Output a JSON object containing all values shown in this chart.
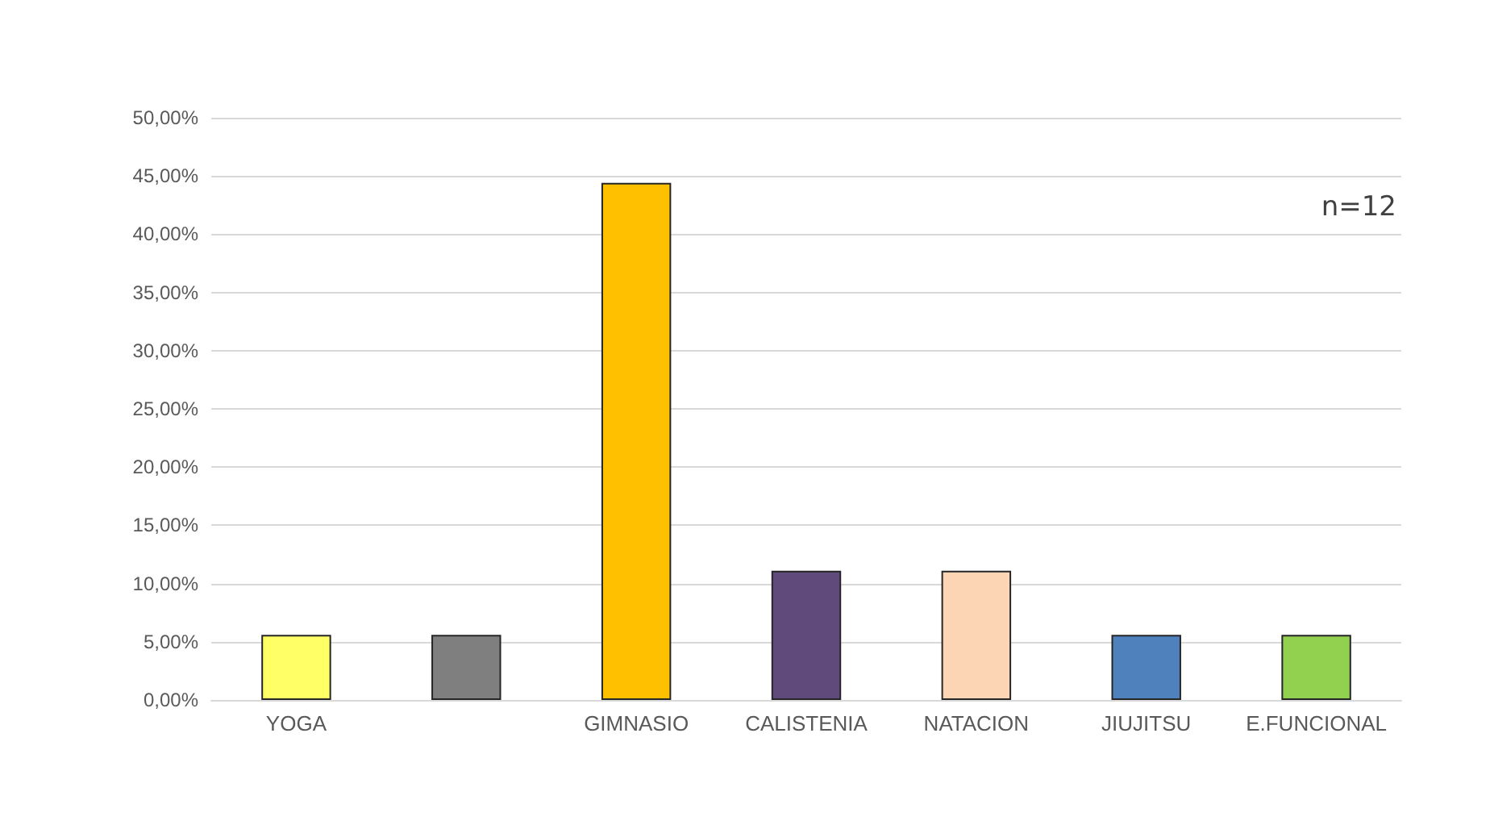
{
  "chart_data": {
    "type": "bar",
    "categories": [
      "YOGA",
      null,
      "GIMNASIO",
      "CALISTENIA",
      "NATACION",
      "JIUJITSU",
      "E.FUNCIONAL"
    ],
    "values": [
      5.6,
      5.6,
      44.4,
      11.1,
      11.1,
      5.6,
      5.6
    ],
    "colors": [
      "#ffff66",
      "#7f7f7f",
      "#ffc000",
      "#604a7b",
      "#fcd5b5",
      "#4f81bd",
      "#92d050"
    ],
    "ylim": [
      0,
      50
    ],
    "yticks": [
      {
        "value": 0,
        "label": "0,00%"
      },
      {
        "value": 5,
        "label": "5,00%"
      },
      {
        "value": 10,
        "label": "10,00%"
      },
      {
        "value": 15,
        "label": "15,00%"
      },
      {
        "value": 20,
        "label": "20,00%"
      },
      {
        "value": 25,
        "label": "25,00%"
      },
      {
        "value": 30,
        "label": "30,00%"
      },
      {
        "value": 35,
        "label": "35,00%"
      },
      {
        "value": 40,
        "label": "40,00%"
      },
      {
        "value": 45,
        "label": "45,00%"
      },
      {
        "value": 50,
        "label": "50,00%"
      }
    ],
    "grid": "y",
    "annotations": [
      "n=12"
    ]
  }
}
